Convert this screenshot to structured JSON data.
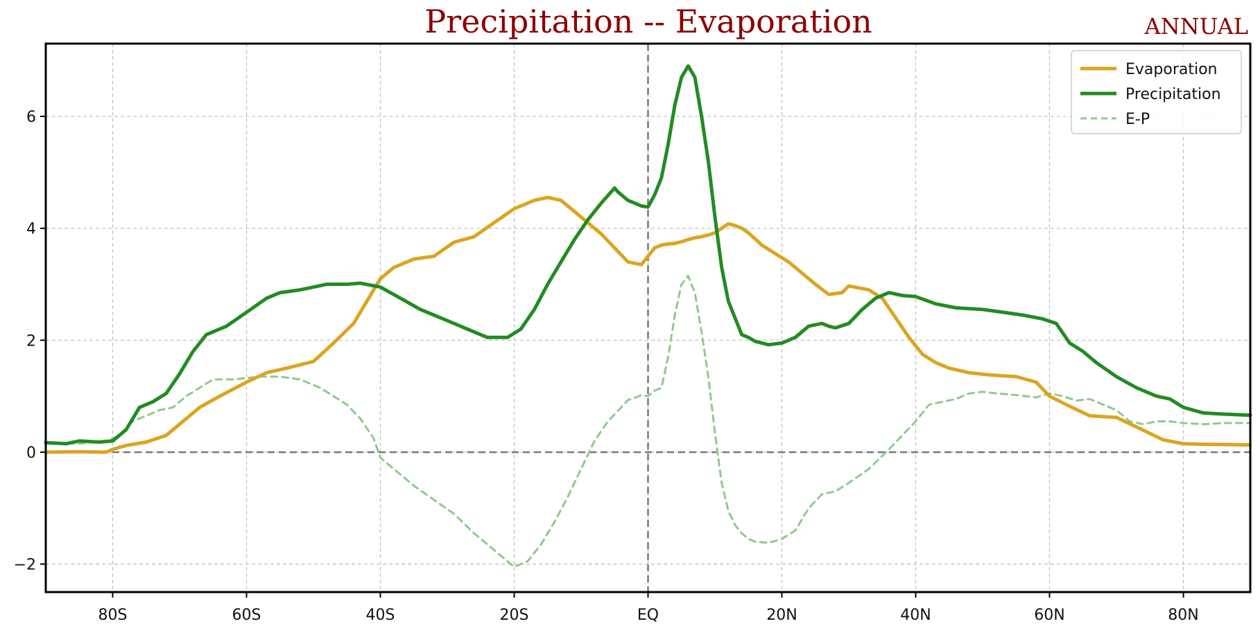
{
  "chart_data": {
    "type": "line",
    "title": "Precipitation -- Evaporation",
    "subtitle": "ANNUAL",
    "xlabel": "",
    "ylabel": "",
    "xlim": [
      -90,
      90
    ],
    "ylim": [
      -2.5,
      7.3
    ],
    "grid": true,
    "legend": "top-right",
    "x_ticks": [
      {
        "value": -80,
        "label": "80S"
      },
      {
        "value": -60,
        "label": "60S"
      },
      {
        "value": -40,
        "label": "40S"
      },
      {
        "value": -20,
        "label": "20S"
      },
      {
        "value": 0,
        "label": "EQ"
      },
      {
        "value": 20,
        "label": "20N"
      },
      {
        "value": 40,
        "label": "40N"
      },
      {
        "value": 60,
        "label": "60N"
      },
      {
        "value": 80,
        "label": "80N"
      }
    ],
    "y_ticks": [
      {
        "value": -2,
        "label": "−2"
      },
      {
        "value": 0,
        "label": "0"
      },
      {
        "value": 2,
        "label": "2"
      },
      {
        "value": 4,
        "label": "4"
      },
      {
        "value": 6,
        "label": "6"
      }
    ],
    "series": [
      {
        "name": "Evaporation",
        "color": "#daa520",
        "style": "solid",
        "x": [
          -90,
          -85,
          -81,
          -80,
          -78,
          -75,
          -72,
          -70,
          -67,
          -64,
          -60,
          -57,
          -54,
          -50,
          -47,
          -44,
          -42,
          -40,
          -38,
          -35,
          -32,
          -29,
          -26,
          -23,
          -20,
          -17,
          -15,
          -13,
          -11,
          -9,
          -7,
          -5,
          -3,
          -1,
          0,
          1,
          2,
          3,
          4,
          5,
          6,
          7,
          8,
          9,
          10,
          11,
          12,
          13,
          14,
          15,
          17,
          19,
          21,
          23,
          25,
          27,
          29,
          30,
          33,
          35,
          37,
          39,
          41,
          43,
          45,
          48,
          51,
          55,
          58,
          60,
          63,
          66,
          70,
          73,
          77,
          80,
          83,
          90
        ],
        "y": [
          0.0,
          0.01,
          0.0,
          0.05,
          0.12,
          0.18,
          0.3,
          0.5,
          0.8,
          1.0,
          1.25,
          1.42,
          1.5,
          1.62,
          1.95,
          2.3,
          2.7,
          3.1,
          3.3,
          3.45,
          3.5,
          3.75,
          3.85,
          4.1,
          4.35,
          4.5,
          4.55,
          4.5,
          4.3,
          4.1,
          3.9,
          3.65,
          3.4,
          3.35,
          3.5,
          3.65,
          3.7,
          3.72,
          3.73,
          3.76,
          3.8,
          3.83,
          3.85,
          3.88,
          3.92,
          4.0,
          4.08,
          4.05,
          4.0,
          3.92,
          3.7,
          3.55,
          3.4,
          3.2,
          3.0,
          2.82,
          2.85,
          2.97,
          2.9,
          2.75,
          2.4,
          2.05,
          1.75,
          1.6,
          1.5,
          1.42,
          1.38,
          1.35,
          1.25,
          1.0,
          0.82,
          0.65,
          0.62,
          0.45,
          0.22,
          0.15,
          0.14,
          0.13
        ]
      },
      {
        "name": "Precipitation",
        "color": "#228b22",
        "style": "solid",
        "x": [
          -90,
          -87,
          -85,
          -82,
          -80,
          -78,
          -76,
          -74,
          -72,
          -70,
          -68,
          -66,
          -63,
          -60,
          -57,
          -55,
          -52,
          -50,
          -48,
          -45,
          -43,
          -40,
          -37,
          -34,
          -30,
          -27,
          -24,
          -21,
          -19,
          -17,
          -15,
          -13,
          -11,
          -9,
          -7,
          -5,
          -4.5,
          -4,
          -3,
          -2,
          -1,
          0,
          1,
          2,
          3,
          4,
          5,
          6,
          7,
          8,
          9,
          10,
          11,
          12,
          13,
          14,
          15,
          16,
          18,
          20,
          22,
          24,
          26,
          27,
          28,
          30,
          32,
          34,
          36,
          38,
          40,
          43,
          46,
          50,
          53,
          56,
          59,
          61,
          63,
          65,
          67,
          70,
          73,
          76,
          78,
          80,
          83,
          86,
          90
        ],
        "y": [
          0.17,
          0.15,
          0.2,
          0.18,
          0.2,
          0.4,
          0.8,
          0.9,
          1.05,
          1.4,
          1.8,
          2.1,
          2.25,
          2.5,
          2.75,
          2.85,
          2.9,
          2.95,
          3.0,
          3.0,
          3.02,
          2.95,
          2.75,
          2.55,
          2.35,
          2.2,
          2.05,
          2.05,
          2.2,
          2.55,
          3.0,
          3.4,
          3.8,
          4.15,
          4.45,
          4.72,
          4.65,
          4.6,
          4.5,
          4.45,
          4.4,
          4.38,
          4.6,
          4.9,
          5.5,
          6.2,
          6.7,
          6.9,
          6.7,
          6.0,
          5.2,
          4.2,
          3.3,
          2.7,
          2.4,
          2.1,
          2.05,
          1.98,
          1.92,
          1.95,
          2.05,
          2.25,
          2.3,
          2.25,
          2.22,
          2.3,
          2.55,
          2.75,
          2.85,
          2.8,
          2.78,
          2.65,
          2.58,
          2.55,
          2.5,
          2.45,
          2.38,
          2.3,
          1.95,
          1.8,
          1.6,
          1.35,
          1.15,
          1.0,
          0.95,
          0.8,
          0.7,
          0.68,
          0.66
        ]
      },
      {
        "name": "E-P",
        "color": "#8fc98f",
        "style": "dashed",
        "x": [
          -90,
          -85,
          -81,
          -79,
          -77,
          -75,
          -73,
          -71,
          -69,
          -67,
          -65,
          -62,
          -58,
          -55,
          -52,
          -49,
          -47,
          -45,
          -43,
          -41,
          -40,
          -38,
          -35,
          -32,
          -29,
          -26,
          -23,
          -20,
          -18,
          -16,
          -14,
          -12,
          -10,
          -8,
          -6,
          -4,
          -3,
          -2,
          -1,
          0,
          1,
          2,
          3,
          4,
          5,
          6,
          7,
          8,
          9,
          10,
          11,
          12,
          13,
          14,
          15,
          16,
          18,
          20,
          22,
          24,
          26,
          28,
          30,
          33,
          36,
          38,
          40,
          42,
          44,
          46,
          48,
          50,
          52,
          55,
          58,
          60,
          62,
          64,
          66,
          68,
          70,
          72,
          74,
          76,
          78,
          80,
          83,
          86,
          90
        ],
        "y": [
          0.17,
          0.15,
          0.2,
          0.3,
          0.55,
          0.65,
          0.75,
          0.8,
          1.0,
          1.15,
          1.3,
          1.3,
          1.35,
          1.35,
          1.3,
          1.15,
          1.0,
          0.85,
          0.6,
          0.25,
          -0.1,
          -0.3,
          -0.6,
          -0.85,
          -1.1,
          -1.45,
          -1.75,
          -2.05,
          -1.95,
          -1.65,
          -1.25,
          -0.8,
          -0.3,
          0.2,
          0.55,
          0.8,
          0.93,
          0.97,
          1.02,
          1.0,
          1.1,
          1.15,
          1.7,
          2.45,
          3.0,
          3.15,
          2.85,
          2.15,
          1.35,
          0.35,
          -0.55,
          -1.05,
          -1.3,
          -1.45,
          -1.55,
          -1.6,
          -1.62,
          -1.55,
          -1.4,
          -1.0,
          -0.75,
          -0.7,
          -0.55,
          -0.3,
          0.05,
          0.3,
          0.55,
          0.85,
          0.9,
          0.95,
          1.05,
          1.08,
          1.05,
          1.02,
          0.98,
          1.05,
          1.0,
          0.92,
          0.95,
          0.85,
          0.75,
          0.55,
          0.5,
          0.55,
          0.55,
          0.52,
          0.5,
          0.52,
          0.52
        ]
      }
    ],
    "reference_lines": [
      {
        "axis": "y",
        "value": 0
      },
      {
        "axis": "x",
        "value": 0
      }
    ]
  }
}
